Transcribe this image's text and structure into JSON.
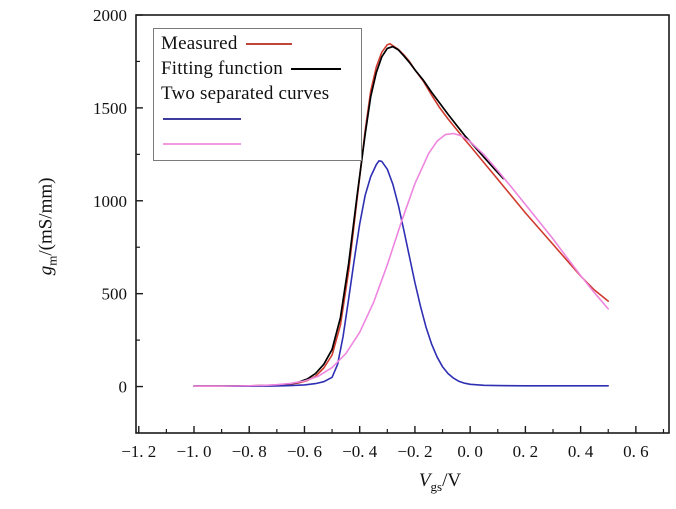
{
  "figure": {
    "background": "#ffffff"
  },
  "colors": {
    "measured": "#d03a2e",
    "fitting": "#000000",
    "curve1": "#2f2fb3",
    "curve2": "#ee86df",
    "axis": "#1a1a1a",
    "legend_border": "#7a7a7a"
  },
  "legend": {
    "entries": [
      {
        "label": "Measured",
        "line_color": "#c0463c"
      },
      {
        "label": "Fitting function",
        "line_color": "#000000"
      },
      {
        "label": "Two separated curves",
        "line_color": null
      },
      {
        "label": "",
        "line_color": "#3c3c9d"
      },
      {
        "label": "",
        "line_color": "#f29ae1"
      }
    ]
  },
  "axes": {
    "xlabel": {
      "var": "V",
      "sub": "gs",
      "rest": "/V"
    },
    "ylabel": {
      "var": "g",
      "sub": "m",
      "rest": "/(mS/mm)"
    }
  },
  "chart_data": {
    "type": "line",
    "title": "",
    "xlabel": "Vgs/V",
    "ylabel": "gm/(mS/mm)",
    "xlim": [
      -1.21,
      0.72
    ],
    "ylim": [
      -250,
      2000
    ],
    "grid": false,
    "legend_position": "upper-left-inside",
    "x_major_ticks": {
      "values": [
        -1.2,
        -1.0,
        -0.8,
        -0.6,
        -0.4,
        -0.2,
        0.0,
        0.2,
        0.4,
        0.6
      ],
      "labels": [
        "−1. 2",
        "−1. 0",
        "−0. 8",
        "−0. 6",
        "−0. 4",
        "−0. 2",
        "0. 0",
        "0. 2",
        "0. 4",
        "0. 6"
      ]
    },
    "x_minor_ticks": [
      -1.1,
      -0.9,
      -0.7,
      -0.5,
      -0.3,
      -0.1,
      0.1,
      0.3,
      0.5,
      0.7
    ],
    "y_major_ticks": {
      "values": [
        0,
        500,
        1000,
        1500,
        2000
      ],
      "labels": [
        "0",
        "500",
        "1000",
        "1500",
        "2000"
      ]
    },
    "y_minor_ticks": [
      250,
      750,
      1250,
      1750
    ],
    "series": [
      {
        "name": "Measured",
        "color": "#d03a2e",
        "width": 1.6,
        "points": [
          [
            -1.0,
            3
          ],
          [
            -0.9,
            3
          ],
          [
            -0.8,
            4
          ],
          [
            -0.75,
            5
          ],
          [
            -0.7,
            7
          ],
          [
            -0.65,
            13
          ],
          [
            -0.62,
            20
          ],
          [
            -0.59,
            32
          ],
          [
            -0.56,
            55
          ],
          [
            -0.53,
            100
          ],
          [
            -0.5,
            170
          ],
          [
            -0.47,
            330
          ],
          [
            -0.44,
            620
          ],
          [
            -0.41,
            1000
          ],
          [
            -0.38,
            1380
          ],
          [
            -0.36,
            1590
          ],
          [
            -0.34,
            1720
          ],
          [
            -0.32,
            1800
          ],
          [
            -0.3,
            1840
          ],
          [
            -0.29,
            1845
          ],
          [
            -0.28,
            1835
          ],
          [
            -0.26,
            1815
          ],
          [
            -0.24,
            1785
          ],
          [
            -0.22,
            1750
          ],
          [
            -0.2,
            1705
          ],
          [
            -0.17,
            1645
          ],
          [
            -0.14,
            1570
          ],
          [
            -0.11,
            1500
          ],
          [
            -0.08,
            1440
          ],
          [
            -0.05,
            1385
          ],
          [
            -0.02,
            1330
          ],
          [
            0.0,
            1295
          ],
          [
            0.05,
            1205
          ],
          [
            0.1,
            1115
          ],
          [
            0.15,
            1025
          ],
          [
            0.2,
            935
          ],
          [
            0.25,
            850
          ],
          [
            0.3,
            765
          ],
          [
            0.35,
            680
          ],
          [
            0.4,
            595
          ],
          [
            0.45,
            520
          ],
          [
            0.5,
            460
          ]
        ]
      },
      {
        "name": "Fitting function",
        "color": "#000000",
        "width": 1.7,
        "points": [
          [
            -1.0,
            2
          ],
          [
            -0.9,
            2
          ],
          [
            -0.8,
            3
          ],
          [
            -0.75,
            5
          ],
          [
            -0.7,
            8
          ],
          [
            -0.65,
            15
          ],
          [
            -0.62,
            24
          ],
          [
            -0.59,
            40
          ],
          [
            -0.56,
            70
          ],
          [
            -0.53,
            120
          ],
          [
            -0.5,
            200
          ],
          [
            -0.47,
            370
          ],
          [
            -0.44,
            660
          ],
          [
            -0.41,
            1020
          ],
          [
            -0.38,
            1360
          ],
          [
            -0.36,
            1560
          ],
          [
            -0.34,
            1690
          ],
          [
            -0.32,
            1775
          ],
          [
            -0.3,
            1820
          ],
          [
            -0.28,
            1830
          ],
          [
            -0.26,
            1812
          ],
          [
            -0.24,
            1780
          ],
          [
            -0.22,
            1745
          ],
          [
            -0.2,
            1705
          ],
          [
            -0.17,
            1650
          ],
          [
            -0.14,
            1585
          ],
          [
            -0.11,
            1525
          ],
          [
            -0.08,
            1465
          ],
          [
            -0.05,
            1408
          ],
          [
            -0.02,
            1352
          ],
          [
            0.0,
            1318
          ],
          [
            0.03,
            1268
          ],
          [
            0.06,
            1218
          ],
          [
            0.09,
            1168
          ],
          [
            0.12,
            1120
          ]
        ]
      },
      {
        "name": "Separated curve 1",
        "color": "#2f2fb3",
        "width": 1.6,
        "points": [
          [
            -1.0,
            2
          ],
          [
            -0.9,
            2
          ],
          [
            -0.8,
            2
          ],
          [
            -0.7,
            3
          ],
          [
            -0.65,
            5
          ],
          [
            -0.6,
            9
          ],
          [
            -0.56,
            16
          ],
          [
            -0.53,
            26
          ],
          [
            -0.5,
            50
          ],
          [
            -0.48,
            120
          ],
          [
            -0.46,
            270
          ],
          [
            -0.44,
            470
          ],
          [
            -0.42,
            680
          ],
          [
            -0.4,
            875
          ],
          [
            -0.38,
            1030
          ],
          [
            -0.36,
            1130
          ],
          [
            -0.34,
            1195
          ],
          [
            -0.33,
            1215
          ],
          [
            -0.32,
            1212
          ],
          [
            -0.3,
            1170
          ],
          [
            -0.28,
            1090
          ],
          [
            -0.26,
            975
          ],
          [
            -0.24,
            840
          ],
          [
            -0.22,
            700
          ],
          [
            -0.2,
            560
          ],
          [
            -0.18,
            432
          ],
          [
            -0.16,
            320
          ],
          [
            -0.14,
            230
          ],
          [
            -0.12,
            160
          ],
          [
            -0.1,
            107
          ],
          [
            -0.08,
            70
          ],
          [
            -0.06,
            45
          ],
          [
            -0.04,
            28
          ],
          [
            -0.02,
            18
          ],
          [
            0.0,
            12
          ],
          [
            0.05,
            7
          ],
          [
            0.1,
            5
          ],
          [
            0.2,
            4
          ],
          [
            0.3,
            4
          ],
          [
            0.4,
            4
          ],
          [
            0.5,
            4
          ]
        ]
      },
      {
        "name": "Separated curve 2",
        "color": "#ee86df",
        "width": 1.6,
        "points": [
          [
            -1.0,
            2
          ],
          [
            -0.9,
            2
          ],
          [
            -0.85,
            3
          ],
          [
            -0.8,
            4
          ],
          [
            -0.75,
            6
          ],
          [
            -0.7,
            10
          ],
          [
            -0.65,
            17
          ],
          [
            -0.6,
            30
          ],
          [
            -0.55,
            56
          ],
          [
            -0.5,
            102
          ],
          [
            -0.45,
            178
          ],
          [
            -0.4,
            292
          ],
          [
            -0.35,
            452
          ],
          [
            -0.3,
            655
          ],
          [
            -0.25,
            882
          ],
          [
            -0.2,
            1092
          ],
          [
            -0.15,
            1255
          ],
          [
            -0.12,
            1320
          ],
          [
            -0.09,
            1356
          ],
          [
            -0.06,
            1362
          ],
          [
            -0.03,
            1348
          ],
          [
            0.0,
            1318
          ],
          [
            0.05,
            1248
          ],
          [
            0.1,
            1162
          ],
          [
            0.15,
            1072
          ],
          [
            0.2,
            980
          ],
          [
            0.25,
            888
          ],
          [
            0.3,
            795
          ],
          [
            0.35,
            695
          ],
          [
            0.4,
            598
          ],
          [
            0.45,
            505
          ],
          [
            0.5,
            418
          ]
        ]
      }
    ]
  }
}
